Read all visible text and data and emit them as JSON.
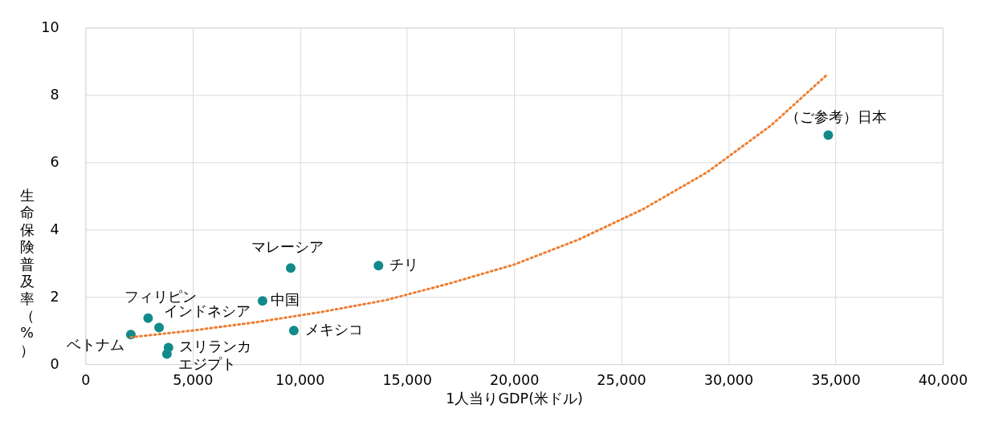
{
  "chart_data": {
    "type": "scatter",
    "xlabel": "1人当りGDP(米ドル)",
    "ylabel": "生命保険普及率（%）",
    "xlim": [
      0,
      40000
    ],
    "xticks": [
      {
        "value": 0,
        "label": "0"
      },
      {
        "value": 5000,
        "label": "5,000"
      },
      {
        "value": 10000,
        "label": "10,000"
      },
      {
        "value": 15000,
        "label": "15,000"
      },
      {
        "value": 20000,
        "label": "20,000"
      },
      {
        "value": 25000,
        "label": "25,000"
      },
      {
        "value": 30000,
        "label": "30,000"
      },
      {
        "value": 35000,
        "label": "35,000"
      },
      {
        "value": 40000,
        "label": "40,000"
      }
    ],
    "ylim": [
      0,
      10
    ],
    "yticks": [
      0,
      2,
      4,
      6,
      8,
      10
    ],
    "grid": true,
    "series": [
      {
        "marker": "circle",
        "color": "#138a8a",
        "x": [
          2120,
          2925,
          3437,
          3876,
          3803,
          8263,
          9580,
          9726,
          13675,
          34662
        ],
        "values": [
          0.88,
          1.37,
          1.09,
          0.49,
          0.3,
          1.88,
          2.86,
          1.0,
          2.93,
          6.81
        ]
      },
      {
        "type": "line",
        "color": "#ed7d31",
        "line_style": "dotted",
        "x": [
          2120,
          5000,
          8000,
          11000,
          14000,
          17000,
          20000,
          23000,
          26000,
          29000,
          32000,
          34600
        ],
        "values": [
          0.8,
          1.0,
          1.25,
          1.55,
          1.9,
          2.4,
          2.96,
          3.7,
          4.6,
          5.7,
          7.1,
          8.6
        ]
      }
    ],
    "annotations": [
      {
        "text": "ベトナム",
        "x": 2120,
        "y": 0.88
      },
      {
        "text": "フィリピン",
        "x": 2925,
        "y": 1.37
      },
      {
        "text": "インドネシア",
        "x": 3437,
        "y": 1.09
      },
      {
        "text": "スリランカ",
        "x": 3876,
        "y": 0.49
      },
      {
        "text": "エジプト",
        "x": 3803,
        "y": 0.3
      },
      {
        "text": "中国",
        "x": 8263,
        "y": 1.88
      },
      {
        "text": "マレーシア",
        "x": 9580,
        "y": 2.86
      },
      {
        "text": "メキシコ",
        "x": 9726,
        "y": 1.0
      },
      {
        "text": "チリ",
        "x": 13675,
        "y": 2.93
      },
      {
        "text": "（ご参考）日本",
        "x": 34662,
        "y": 6.81
      }
    ]
  }
}
